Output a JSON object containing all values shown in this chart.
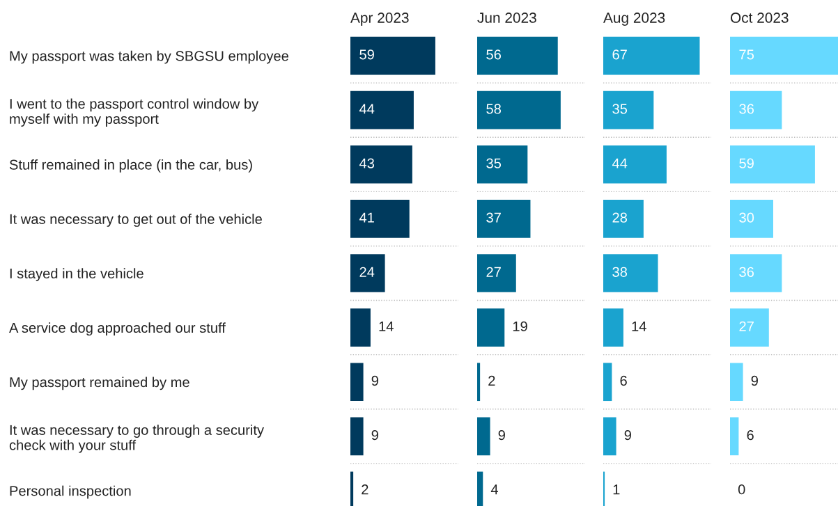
{
  "chart_data": [
    {
      "type": "bar",
      "orientation": "horizontal",
      "title": "Apr 2023",
      "color": "#003a5d",
      "data_labels": true,
      "grid": "y",
      "tick_labels": "y",
      "categories": [
        "My passport was taken by SBGSU employee",
        "I went to the passport control window by\nmyself with my passport",
        "Stuff remained in place (in the car, bus)",
        "It was necessary to get out of the vehicle",
        "I stayed in the vehicle",
        "A service dog approached our stuff",
        "My passport remained by me",
        "It was necessary to go through a security\ncheck with your stuff",
        "Personal inspection"
      ],
      "values": [
        59,
        44,
        43,
        41,
        24,
        14,
        9,
        9,
        2
      ]
    },
    {
      "type": "bar",
      "orientation": "horizontal",
      "title": "Jun 2023",
      "color": "#00698f",
      "data_labels": true,
      "grid": "y",
      "tick_labels": false,
      "categories": [
        null,
        null,
        null,
        null,
        null,
        null,
        null,
        null,
        null
      ],
      "values": [
        56,
        58,
        35,
        37,
        27,
        19,
        2,
        9,
        4
      ]
    },
    {
      "type": "bar",
      "orientation": "horizontal",
      "title": "Aug 2023",
      "color": "#1aa3cf",
      "data_labels": true,
      "grid": "y",
      "tick_labels": false,
      "categories": [
        null,
        null,
        null,
        null,
        null,
        null,
        null,
        null,
        null
      ],
      "values": [
        67,
        35,
        44,
        28,
        38,
        14,
        6,
        9,
        1
      ]
    },
    {
      "type": "bar",
      "orientation": "horizontal",
      "title": "Oct 2023",
      "color": "#66d9ff",
      "data_labels": true,
      "grid": "y",
      "tick_labels": false,
      "categories": [
        null,
        null,
        null,
        null,
        null,
        null,
        null,
        null,
        null
      ],
      "values": [
        75,
        36,
        59,
        30,
        36,
        27,
        9,
        6,
        0
      ]
    }
  ]
}
